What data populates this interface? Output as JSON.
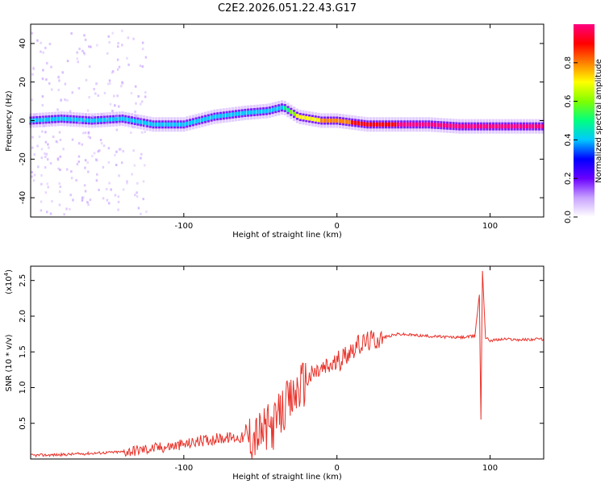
{
  "title": "C2E2.2026.051.22.43.G17",
  "spectrogram": {
    "type": "heatmap",
    "xlabel": "Height of straight line (km)",
    "ylabel": "Frequency (Hz)",
    "xlim": [
      -200,
      135
    ],
    "ylim": [
      -50,
      50
    ],
    "xticks": [
      "-100",
      "0",
      "100"
    ],
    "xtick_values": [
      -100,
      0,
      100
    ],
    "yticks": [
      "-40",
      "-20",
      "0",
      "20",
      "40"
    ],
    "ytick_values": [
      -40,
      -20,
      0,
      20,
      40
    ],
    "grid": false,
    "colorbar": {
      "label": "Normalized spectral amplitude",
      "range": [
        0,
        1
      ],
      "ticks": [
        "0.0",
        "0.2",
        "0.4",
        "0.6",
        "0.8"
      ],
      "tick_values": [
        0,
        0.2,
        0.4,
        0.6,
        0.8
      ],
      "colors": [
        "#ffffff",
        "#c8a2ff",
        "#6a00ff",
        "#0000ff",
        "#00c8ff",
        "#00ff80",
        "#80ff00",
        "#ffff00",
        "#ff8000",
        "#ff0000",
        "#ff0080"
      ]
    },
    "ridge": [
      {
        "x": -200,
        "f": 0,
        "amp": 0.35
      },
      {
        "x": -180,
        "f": 1,
        "amp": 0.38
      },
      {
        "x": -160,
        "f": 0,
        "amp": 0.38
      },
      {
        "x": -140,
        "f": 1,
        "amp": 0.38
      },
      {
        "x": -120,
        "f": -2,
        "amp": 0.4
      },
      {
        "x": -100,
        "f": -2,
        "amp": 0.4
      },
      {
        "x": -80,
        "f": 2,
        "amp": 0.42
      },
      {
        "x": -60,
        "f": 4,
        "amp": 0.42
      },
      {
        "x": -45,
        "f": 5,
        "amp": 0.42
      },
      {
        "x": -35,
        "f": 7,
        "amp": 0.45
      },
      {
        "x": -25,
        "f": 2,
        "amp": 0.7
      },
      {
        "x": -10,
        "f": 0,
        "amp": 0.75
      },
      {
        "x": 0,
        "f": 0,
        "amp": 0.8
      },
      {
        "x": 10,
        "f": -1,
        "amp": 0.85
      },
      {
        "x": 20,
        "f": -2,
        "amp": 0.9
      },
      {
        "x": 40,
        "f": -2,
        "amp": 0.95
      },
      {
        "x": 60,
        "f": -2,
        "amp": 0.95
      },
      {
        "x": 80,
        "f": -3,
        "amp": 0.95
      },
      {
        "x": 100,
        "f": -3,
        "amp": 0.95
      },
      {
        "x": 120,
        "f": -3,
        "amp": 0.95
      },
      {
        "x": 135,
        "f": -3,
        "amp": 0.95
      }
    ]
  },
  "snr": {
    "type": "line",
    "xlabel": "Height of straight line (km)",
    "ylabel": "SNR (10 * v/v)",
    "multiplier": "(x10^4)",
    "multiplier_base": "(x10",
    "multiplier_exp": "4",
    "multiplier_close": ")",
    "xlim": [
      -200,
      135
    ],
    "ylim": [
      0,
      2.7
    ],
    "xticks": [
      "-100",
      "0",
      "100"
    ],
    "xtick_values": [
      -100,
      0,
      100
    ],
    "yticks": [
      "0.5",
      "1.0",
      "1.5",
      "2.0",
      "2.5"
    ],
    "ytick_values": [
      0.5,
      1.0,
      1.5,
      2.0,
      2.5
    ],
    "grid": false,
    "color": "#e8322a",
    "series": [
      {
        "name": "SNR",
        "x": [
          -200,
          -180,
          -160,
          -140,
          -120,
          -100,
          -90,
          -80,
          -70,
          -60,
          -50,
          -40,
          -35,
          -30,
          -25,
          -20,
          -15,
          -10,
          -5,
          0,
          5,
          10,
          20,
          30,
          40,
          60,
          80,
          90,
          93,
          94,
          95,
          97,
          100,
          110,
          120,
          135
        ],
        "y": [
          0.05,
          0.06,
          0.08,
          0.1,
          0.15,
          0.2,
          0.25,
          0.28,
          0.3,
          0.3,
          0.35,
          0.5,
          0.7,
          0.8,
          1.0,
          1.1,
          1.2,
          1.25,
          1.3,
          1.35,
          1.45,
          1.55,
          1.65,
          1.7,
          1.75,
          1.72,
          1.7,
          1.72,
          2.3,
          0.55,
          2.65,
          1.7,
          1.66,
          1.68,
          1.67,
          1.68
        ]
      }
    ]
  }
}
